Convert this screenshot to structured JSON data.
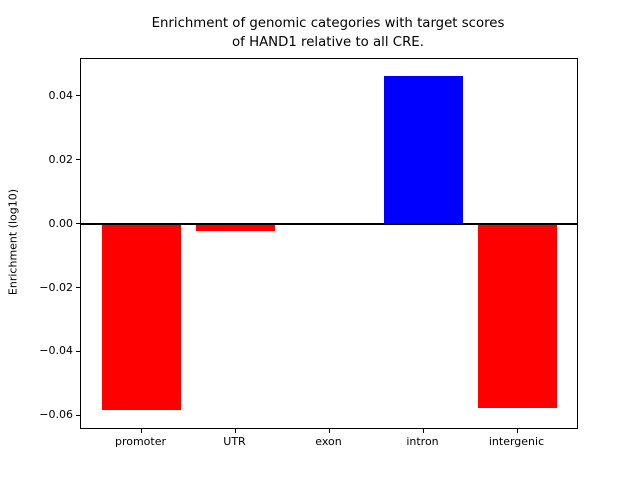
{
  "title": {
    "line1": "Enrichment of genomic categories with target scores",
    "line2": "of HAND1 relative to all CRE."
  },
  "chart_data": {
    "type": "bar",
    "title": "Enrichment of genomic categories with target scores of HAND1 relative to all CRE.",
    "categories": [
      "promoter",
      "UTR",
      "exon",
      "intron",
      "intergenic"
    ],
    "values": [
      -0.0583,
      -0.0022,
      0.0,
      0.0463,
      -0.0575
    ],
    "bar_colors": [
      "#ff0000",
      "#ff0000",
      "#ff0000",
      "#0000ff",
      "#ff0000"
    ],
    "xlabel": "",
    "ylabel": "Enrichment (log10)",
    "ylim": [
      -0.0638,
      0.0517
    ],
    "yticks": [
      {
        "value": 0.04,
        "label": "0.04"
      },
      {
        "value": 0.02,
        "label": "0.02"
      },
      {
        "value": 0.0,
        "label": "0.00"
      },
      {
        "value": -0.02,
        "label": "−0.02"
      },
      {
        "value": -0.04,
        "label": "−0.04"
      },
      {
        "value": -0.06,
        "label": "−0.06"
      }
    ],
    "zero_line": true,
    "grid": false,
    "legend_position": "none",
    "colors": {
      "positive_bar": "#0000ff",
      "negative_bar": "#ff0000",
      "axis": "#000000",
      "background": "#ffffff"
    }
  }
}
